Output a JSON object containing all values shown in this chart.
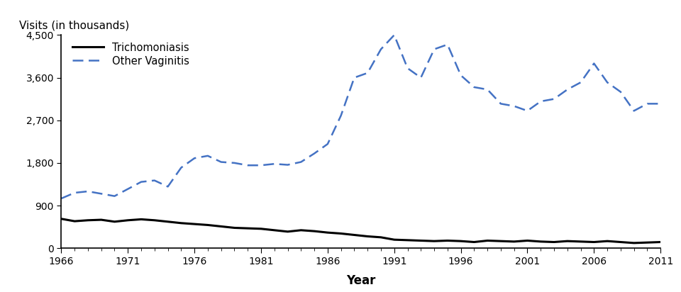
{
  "years": [
    1966,
    1967,
    1968,
    1969,
    1970,
    1971,
    1972,
    1973,
    1974,
    1975,
    1976,
    1977,
    1978,
    1979,
    1980,
    1981,
    1982,
    1983,
    1984,
    1985,
    1986,
    1987,
    1988,
    1989,
    1990,
    1991,
    1992,
    1993,
    1994,
    1995,
    1996,
    1997,
    1998,
    1999,
    2000,
    2001,
    2002,
    2003,
    2004,
    2005,
    2006,
    2007,
    2008,
    2009,
    2010,
    2011
  ],
  "trichomoniasis": [
    620,
    570,
    590,
    600,
    560,
    590,
    610,
    590,
    560,
    530,
    510,
    490,
    460,
    430,
    420,
    410,
    380,
    350,
    380,
    360,
    330,
    310,
    280,
    250,
    230,
    180,
    170,
    160,
    150,
    160,
    150,
    130,
    160,
    150,
    140,
    160,
    140,
    130,
    150,
    140,
    130,
    150,
    130,
    110,
    120,
    130
  ],
  "other_vaginitis": [
    1050,
    1170,
    1200,
    1150,
    1100,
    1250,
    1400,
    1430,
    1300,
    1700,
    1900,
    1950,
    1820,
    1800,
    1750,
    1750,
    1780,
    1760,
    1820,
    2000,
    2200,
    2800,
    3600,
    3700,
    4200,
    4500,
    3800,
    3600,
    4200,
    4300,
    3650,
    3400,
    3350,
    3050,
    3000,
    2900,
    3100,
    3150,
    3350,
    3500,
    3900,
    3500,
    3300,
    2900,
    3050,
    3050
  ],
  "trichomoniasis_color": "#000000",
  "other_vaginitis_color": "#4472C4",
  "ylabel": "Visits (in thousands)",
  "xlabel": "Year",
  "ylim": [
    0,
    4500
  ],
  "yticks": [
    0,
    900,
    1800,
    2700,
    3600,
    4500
  ],
  "ytick_labels": [
    "0",
    "900",
    "1,800",
    "2,700",
    "3,600",
    "4,500"
  ],
  "xticks": [
    1966,
    1971,
    1976,
    1981,
    1986,
    1991,
    1996,
    2001,
    2006,
    2011
  ],
  "legend_trichomoniasis": "Trichomoniasis",
  "legend_other": "Other Vaginitis",
  "background_color": "#ffffff",
  "trichomoniasis_lw": 2.2,
  "other_vaginitis_lw": 1.8
}
